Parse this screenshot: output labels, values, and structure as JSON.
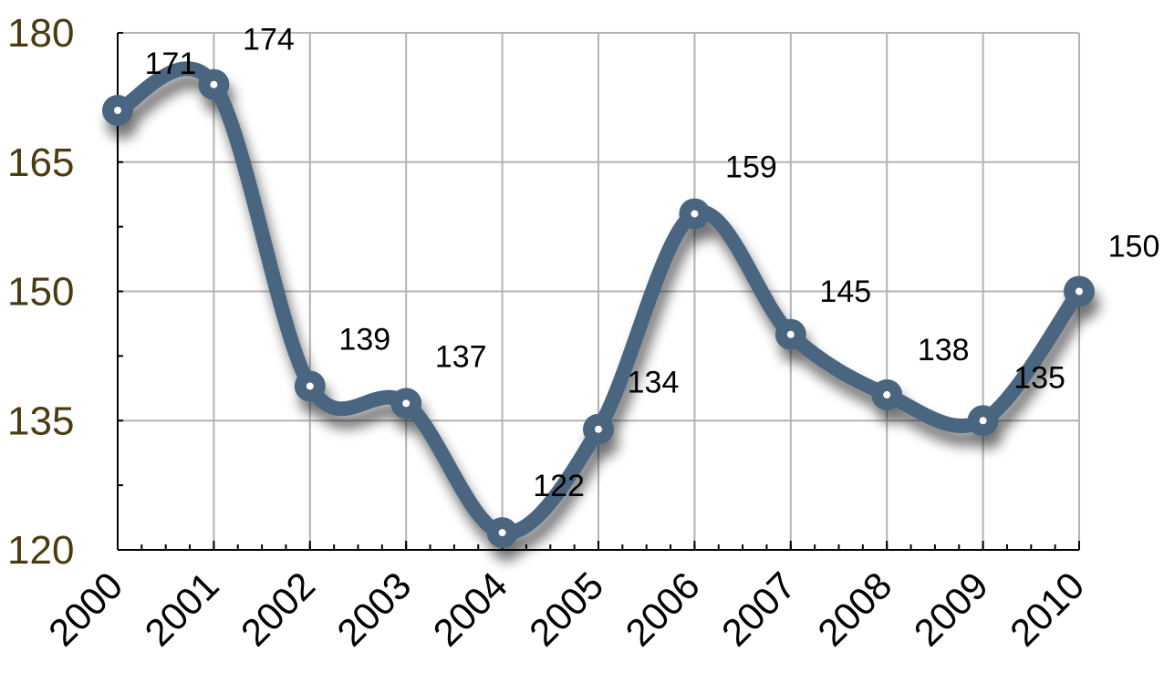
{
  "chart_data": {
    "type": "line",
    "title": "",
    "xlabel": "",
    "ylabel": "",
    "categories": [
      "2000",
      "2001",
      "2002",
      "2003",
      "2004",
      "2005",
      "2006",
      "2007",
      "2008",
      "2009",
      "2010"
    ],
    "series": [
      {
        "values": [
          171,
          174,
          139,
          137,
          122,
          134,
          159,
          145,
          138,
          135,
          150
        ],
        "color": "#4a6580"
      }
    ],
    "y_ticks": [
      "120",
      "135",
      "150",
      "165",
      "180"
    ],
    "ylim": [
      120,
      180
    ],
    "smooth": true,
    "grid": true,
    "legend": "none",
    "colors": {
      "line": "#4a6580",
      "grid": "#b3b3b3",
      "axis": "#000000",
      "y_tick_text": "#4a3b10"
    }
  }
}
